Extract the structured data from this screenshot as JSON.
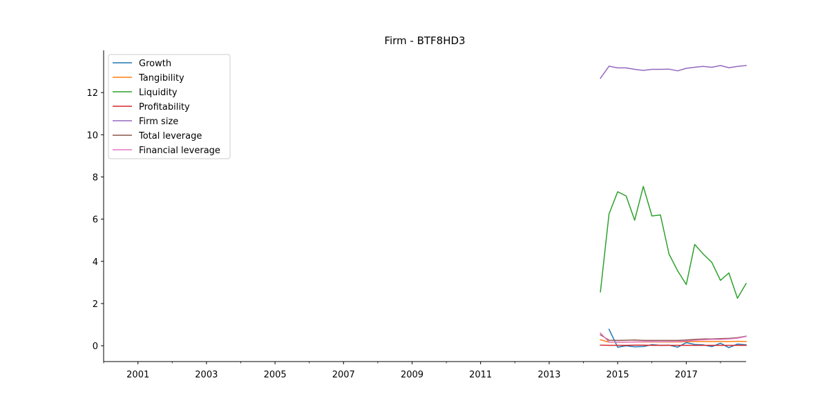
{
  "chart_data": {
    "type": "line",
    "title": "Firm - BTF8HD3",
    "xlabel": "",
    "ylabel": "",
    "xlim": [
      "2000-01-01",
      "2018-10-01"
    ],
    "ylim": [
      -0.75,
      14
    ],
    "xticks": [
      "2001",
      "2003",
      "2005",
      "2007",
      "2009",
      "2011",
      "2013",
      "2015",
      "2017"
    ],
    "yticks": [
      "0",
      "2",
      "4",
      "6",
      "8",
      "10",
      "12"
    ],
    "legend_position": "top-left",
    "grid": false,
    "x": [
      "2014-07-01",
      "2014-10-01",
      "2015-01-01",
      "2015-04-01",
      "2015-07-01",
      "2015-10-01",
      "2016-01-01",
      "2016-04-01",
      "2016-07-01",
      "2016-10-01",
      "2017-01-01",
      "2017-04-01",
      "2017-07-01",
      "2017-10-01",
      "2018-01-01",
      "2018-04-01",
      "2018-07-01",
      "2018-10-01"
    ],
    "series": [
      {
        "name": "Growth",
        "color": "#1f77b4",
        "values": [
          null,
          0.78,
          -0.07,
          0.0,
          -0.05,
          -0.04,
          0.05,
          0.02,
          0.03,
          -0.07,
          0.15,
          0.06,
          0.04,
          -0.04,
          0.12,
          -0.09,
          0.08,
          0.04
        ]
      },
      {
        "name": "Tangibility",
        "color": "#ff7f0e",
        "values": [
          0.28,
          0.17,
          0.17,
          0.17,
          0.18,
          0.18,
          0.18,
          0.18,
          0.18,
          0.18,
          0.19,
          0.2,
          0.2,
          0.2,
          0.2,
          0.2,
          0.21,
          0.2
        ]
      },
      {
        "name": "Liquidity",
        "color": "#2ca02c",
        "values": [
          2.55,
          6.25,
          7.3,
          7.1,
          5.95,
          7.55,
          6.15,
          6.2,
          4.35,
          3.55,
          2.9,
          4.8,
          4.35,
          3.95,
          3.1,
          3.45,
          2.25,
          2.95
        ]
      },
      {
        "name": "Profitability",
        "color": "#d62728",
        "values": [
          0.03,
          0.02,
          0.02,
          0.02,
          0.03,
          0.03,
          0.02,
          0.02,
          0.02,
          0.02,
          0.02,
          0.02,
          0.02,
          0.02,
          0.02,
          0.02,
          0.02,
          0.02
        ]
      },
      {
        "name": "Firm size",
        "color": "#9467bd",
        "values": [
          12.68,
          13.25,
          13.17,
          13.17,
          13.1,
          13.05,
          13.1,
          13.1,
          13.11,
          13.03,
          13.15,
          13.2,
          13.24,
          13.2,
          13.28,
          13.18,
          13.24,
          13.28
        ]
      },
      {
        "name": "Total leverage",
        "color": "#8c564b",
        "values": [
          0.52,
          0.26,
          0.25,
          0.26,
          0.27,
          0.25,
          0.25,
          0.25,
          0.25,
          0.25,
          0.27,
          0.3,
          0.32,
          0.32,
          0.34,
          0.35,
          0.38,
          0.45
        ]
      },
      {
        "name": "Financial leverage",
        "color": "#e377c2",
        "values": [
          0.6,
          0.18,
          0.17,
          0.17,
          0.18,
          0.19,
          0.2,
          0.19,
          0.2,
          0.2,
          0.22,
          0.26,
          0.28,
          0.3,
          0.3,
          0.32,
          0.36,
          0.44
        ]
      }
    ]
  }
}
